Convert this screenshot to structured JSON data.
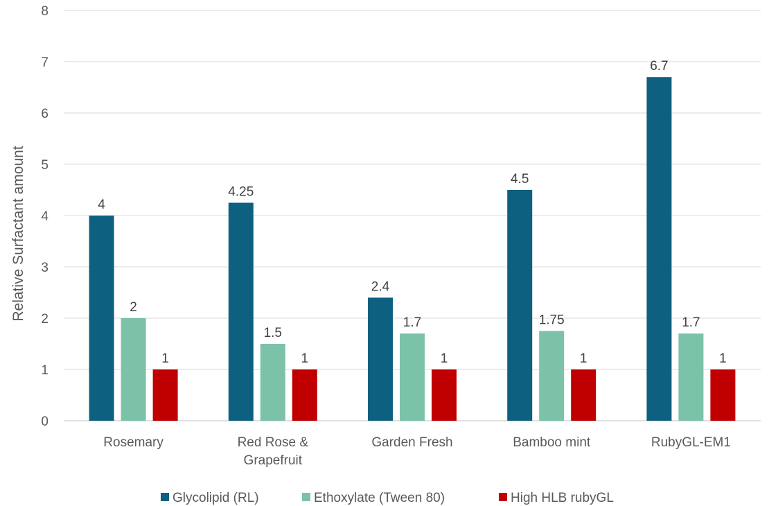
{
  "chart_data": {
    "type": "bar",
    "title": "",
    "xlabel": "",
    "ylabel": "Relative Surfactant amount",
    "ylim": [
      0,
      8
    ],
    "yticks": [
      0,
      1,
      2,
      3,
      4,
      5,
      6,
      7,
      8
    ],
    "grid": true,
    "legend_position": "bottom",
    "categories": [
      [
        "Rosemary"
      ],
      [
        "Red Rose &",
        "Grapefruit"
      ],
      [
        "Garden Fresh"
      ],
      [
        "Bamboo mint"
      ],
      [
        "RubyGL-EM1"
      ]
    ],
    "series": [
      {
        "name": "Glycolipid (RL)",
        "color": "#0e6081",
        "values": [
          4,
          4.25,
          2.4,
          4.5,
          6.7
        ]
      },
      {
        "name": "Ethoxylate (Tween 80)",
        "color": "#7bc2a8",
        "values": [
          2,
          1.5,
          1.7,
          1.75,
          1.7
        ]
      },
      {
        "name": "High HLB rubyGL",
        "color": "#c00000",
        "values": [
          1,
          1,
          1,
          1,
          1
        ]
      }
    ]
  }
}
